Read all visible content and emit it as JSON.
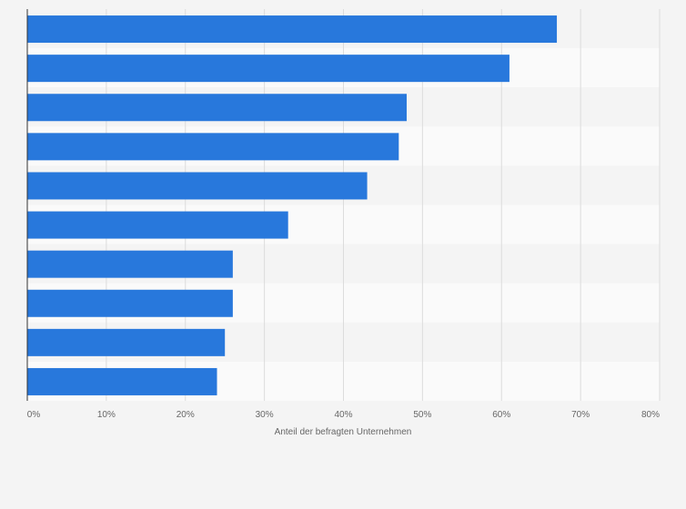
{
  "chart_data": {
    "type": "bar",
    "orientation": "horizontal",
    "categories": [
      "",
      "",
      "",
      "",
      "",
      "",
      "",
      "",
      "",
      ""
    ],
    "values": [
      67,
      61,
      48,
      47,
      43,
      33,
      26,
      26,
      25,
      24
    ],
    "xlabel": "Anteil der befragten Unternehmen",
    "xlim": [
      0,
      80
    ],
    "xticks": [
      "0%",
      "10%",
      "20%",
      "30%",
      "40%",
      "50%",
      "60%",
      "70%",
      "80%"
    ],
    "bar_color": "#2878dc",
    "band_colors": [
      "#f4f4f4",
      "#fafafa"
    ],
    "grid": true
  }
}
